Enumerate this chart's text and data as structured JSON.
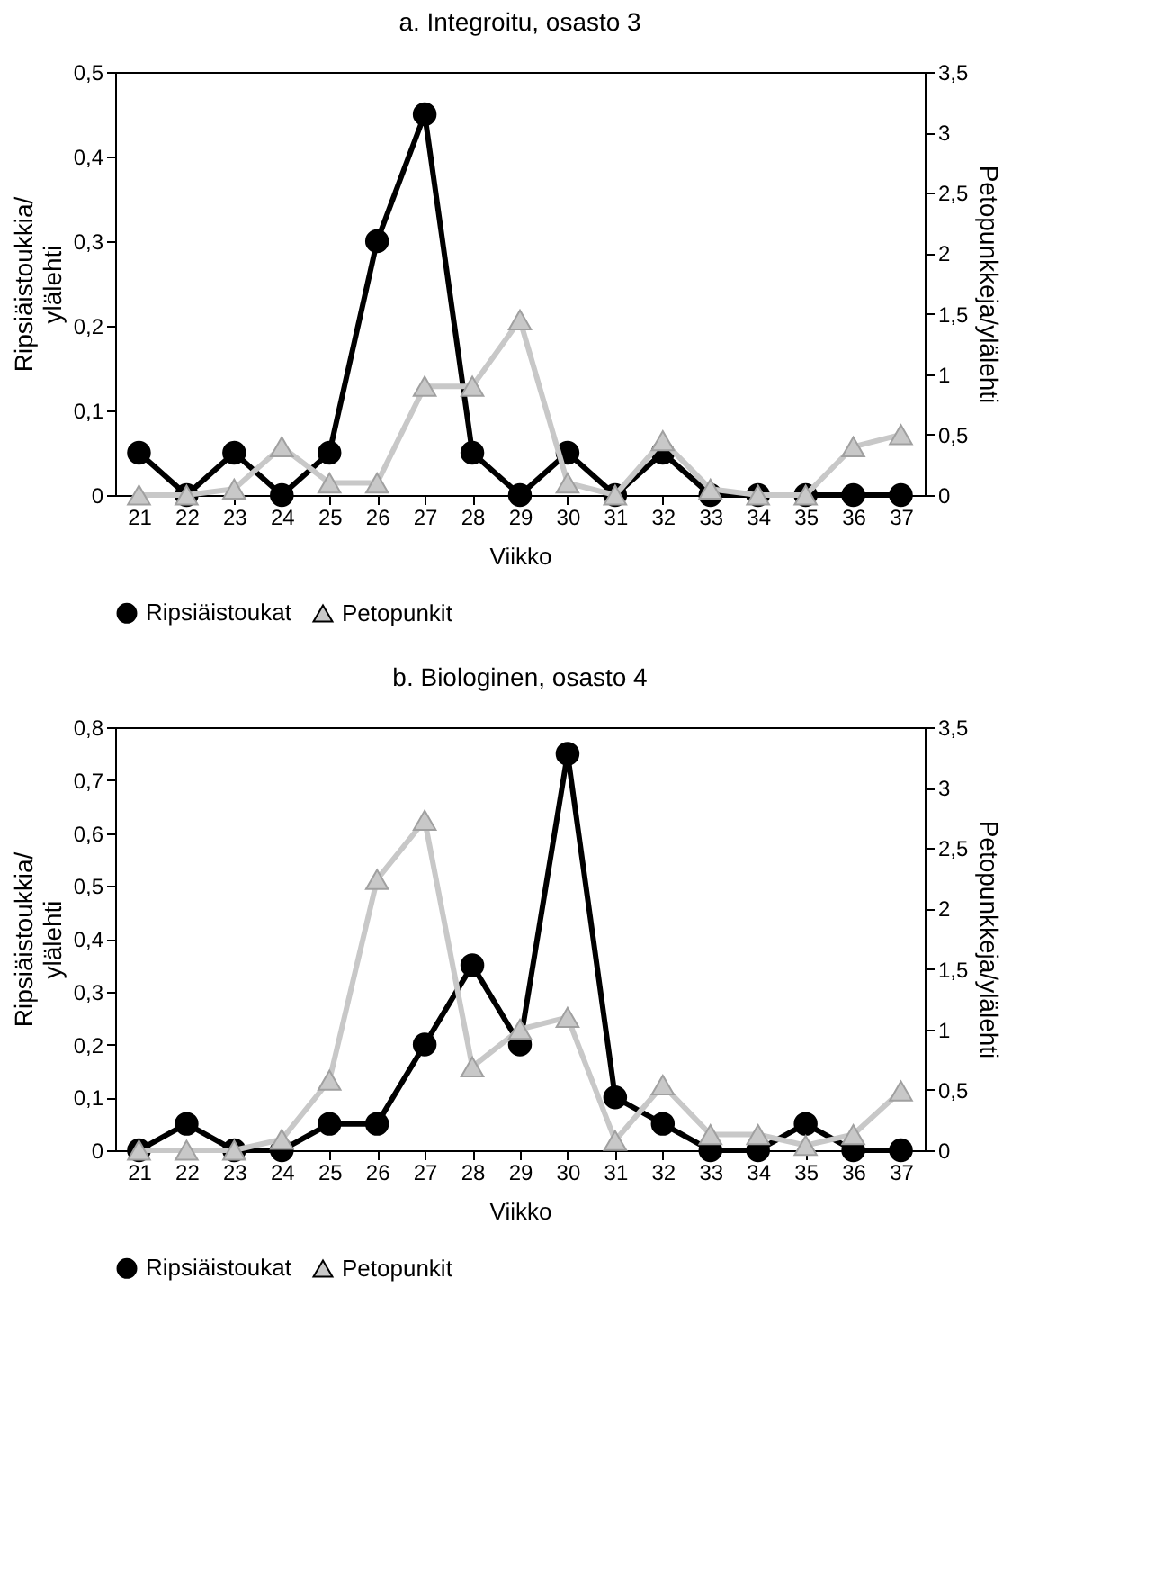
{
  "chart_data": [
    {
      "type": "line",
      "title": "a. Integroitu, osasto 3",
      "xlabel": "Viikko",
      "ylabel": "Ripsiäistoukkia/ ylälehti",
      "y2label": "Petopunkkeja/ylälehti",
      "categories": [
        "21",
        "22",
        "23",
        "24",
        "25",
        "26",
        "27",
        "28",
        "29",
        "30",
        "31",
        "32",
        "33",
        "34",
        "35",
        "36",
        "37"
      ],
      "series": [
        {
          "name": "Ripsiäistoukat",
          "color": "#000000",
          "marker": "circle",
          "values": [
            0.05,
            0,
            0.05,
            0,
            0.05,
            0.3,
            0.45,
            0.05,
            0,
            0.05,
            0,
            0.05,
            0,
            0,
            0,
            0,
            0
          ]
        },
        {
          "name": "Petopunkit",
          "color": "#c8c8c8",
          "marker": "triangle",
          "axis": "y2",
          "values": [
            0,
            0,
            0.05,
            0.4,
            0.1,
            0.1,
            0.9,
            0.9,
            1.45,
            0.1,
            0,
            0.45,
            0.05,
            0,
            0,
            0.4,
            0.5
          ]
        }
      ],
      "ylim": [
        0,
        0.5
      ],
      "yticks": [
        {
          "value": 0,
          "label": "0"
        },
        {
          "value": 0.1,
          "label": "0,1"
        },
        {
          "value": 0.2,
          "label": "0,2"
        },
        {
          "value": 0.3,
          "label": "0,3"
        },
        {
          "value": 0.4,
          "label": "0,4"
        },
        {
          "value": 0.5,
          "label": "0,5"
        }
      ],
      "y2lim": [
        0,
        3.5
      ],
      "y2ticks": [
        {
          "value": 0,
          "label": "0"
        },
        {
          "value": 0.5,
          "label": "0,5"
        },
        {
          "value": 1,
          "label": "1"
        },
        {
          "value": 1.5,
          "label": "1,5"
        },
        {
          "value": 2,
          "label": "2"
        },
        {
          "value": 2.5,
          "label": "2,5"
        },
        {
          "value": 3,
          "label": "3"
        },
        {
          "value": 3.5,
          "label": "3,5"
        }
      ],
      "grid": false,
      "legend": "bottom",
      "line_style": "solid"
    },
    {
      "type": "line",
      "title": "b. Biologinen, osasto 4",
      "xlabel": "Viikko",
      "ylabel": "Ripsiäistoukkia/ ylälehti",
      "y2label": "Petopunkkeja/ylälehti",
      "categories": [
        "21",
        "22",
        "23",
        "24",
        "25",
        "26",
        "27",
        "28",
        "29",
        "30",
        "31",
        "32",
        "33",
        "34",
        "35",
        "36",
        "37"
      ],
      "series": [
        {
          "name": "Ripsiäistoukat",
          "color": "#000000",
          "marker": "circle",
          "values": [
            0,
            0.05,
            0,
            0,
            0.05,
            0.05,
            0.2,
            0.35,
            0.2,
            0.75,
            0.1,
            0.05,
            0,
            0,
            0.05,
            0,
            0
          ]
        },
        {
          "name": "Petopunkit",
          "color": "#c8c8c8",
          "marker": "triangle",
          "axis": "y2",
          "values": [
            0,
            0,
            0,
            0.09,
            0.58,
            2.24,
            2.73,
            0.69,
            1.0,
            1.1,
            0.08,
            0.54,
            0.13,
            0.13,
            0.04,
            0.13,
            0.49
          ]
        }
      ],
      "ylim": [
        0,
        0.8
      ],
      "yticks": [
        {
          "value": 0,
          "label": "0"
        },
        {
          "value": 0.1,
          "label": "0,1"
        },
        {
          "value": 0.2,
          "label": "0,2"
        },
        {
          "value": 0.3,
          "label": "0,3"
        },
        {
          "value": 0.4,
          "label": "0,4"
        },
        {
          "value": 0.5,
          "label": "0,5"
        },
        {
          "value": 0.6,
          "label": "0,6"
        },
        {
          "value": 0.7,
          "label": "0,7"
        },
        {
          "value": 0.8,
          "label": "0,8"
        }
      ],
      "y2lim": [
        0,
        3.5
      ],
      "y2ticks": [
        {
          "value": 0,
          "label": "0"
        },
        {
          "value": 0.5,
          "label": "0,5"
        },
        {
          "value": 1,
          "label": "1"
        },
        {
          "value": 1.5,
          "label": "1,5"
        },
        {
          "value": 2,
          "label": "2"
        },
        {
          "value": 2.5,
          "label": "2,5"
        },
        {
          "value": 3,
          "label": "3"
        },
        {
          "value": 3.5,
          "label": "3,5"
        }
      ],
      "grid": false,
      "legend": "bottom",
      "line_style": "solid"
    }
  ]
}
